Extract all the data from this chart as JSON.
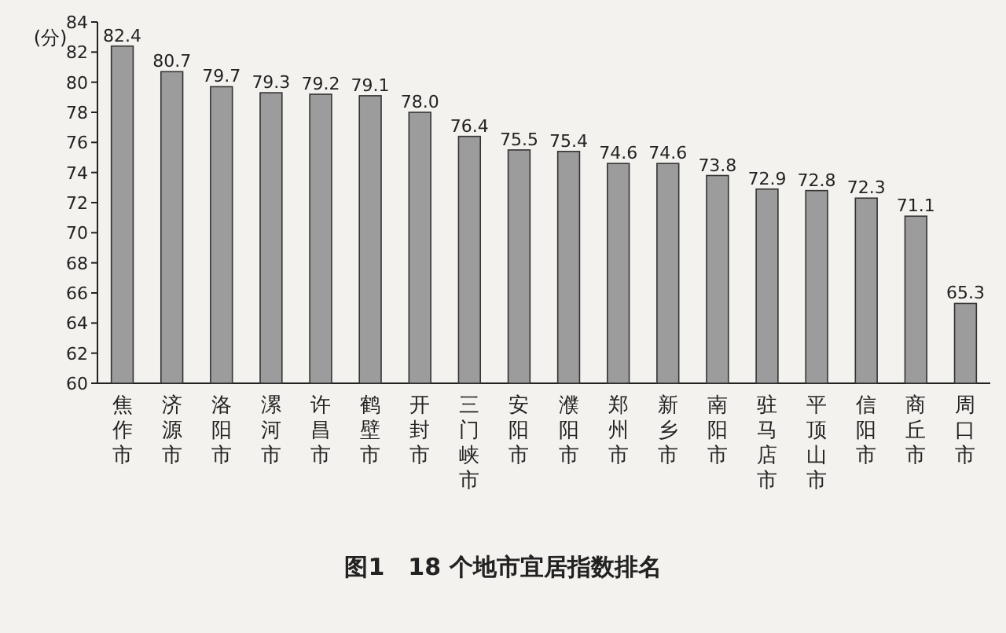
{
  "chart_data": {
    "type": "bar",
    "title": "图1　18 个地市宜居指数排名",
    "ylabel": "(分)",
    "categories": [
      "焦作市",
      "济源市",
      "洛阳市",
      "漯河市",
      "许昌市",
      "鹤壁市",
      "开封市",
      "三门峡市",
      "安阳市",
      "濮阳市",
      "郑州市",
      "新乡市",
      "南阳市",
      "驻马店市",
      "平顶山市",
      "信阳市",
      "商丘市",
      "周口市"
    ],
    "values": [
      82.4,
      80.7,
      79.7,
      79.3,
      79.2,
      79.1,
      78.0,
      76.4,
      75.5,
      75.4,
      74.6,
      74.6,
      73.8,
      72.9,
      72.8,
      72.3,
      71.1,
      65.3
    ],
    "color": "#9c9c9c",
    "ylim": [
      60,
      84
    ],
    "yticks": [
      60,
      62,
      64,
      66,
      68,
      70,
      72,
      74,
      76,
      78,
      80,
      82,
      84
    ],
    "value_labels": [
      "82.4",
      "80.7",
      "79.7",
      "79.3",
      "79.2",
      "79.1",
      "78.0",
      "76.4",
      "75.5",
      "75.4",
      "74.6",
      "74.6",
      "73.8",
      "72.9",
      "72.8",
      "72.3",
      "71.1",
      "65.3"
    ],
    "grid": false
  }
}
